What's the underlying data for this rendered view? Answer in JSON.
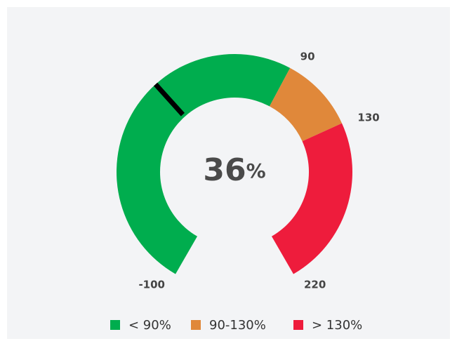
{
  "chart_data": {
    "type": "gauge",
    "value": 36,
    "unit": "%",
    "ylim": [
      -100,
      220
    ],
    "yticks": [
      -100,
      90,
      130,
      220
    ],
    "bands": [
      {
        "name": "< 90%",
        "color": "#00ad4e",
        "range": [
          -100,
          90
        ]
      },
      {
        "name": "90-130%",
        "color": "#e0883a",
        "range": [
          90,
          130
        ]
      },
      {
        "name": "> 130%",
        "color": "#ee1c3c",
        "range": [
          130,
          220
        ]
      }
    ],
    "needle_color": "#000000"
  }
}
